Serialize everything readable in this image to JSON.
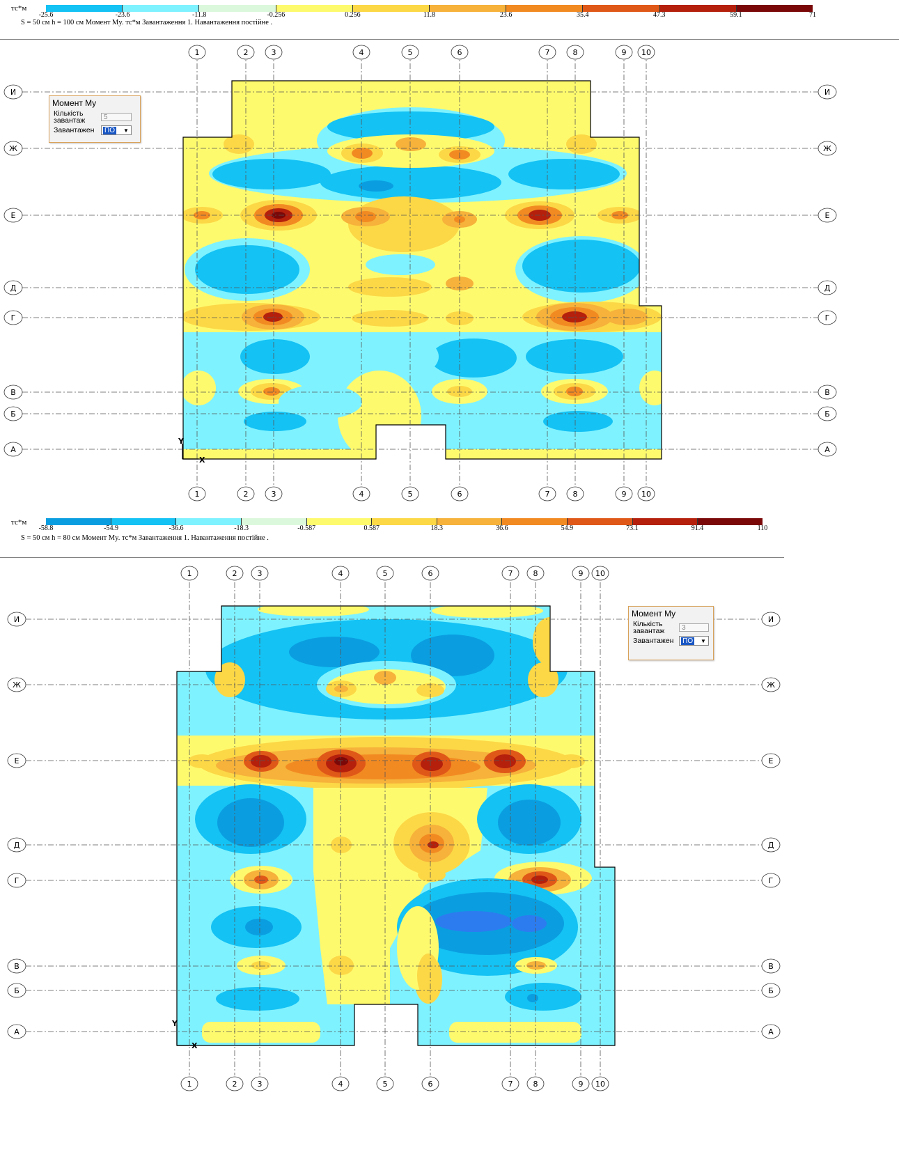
{
  "diagrams": [
    {
      "unit": "тс*м",
      "ticks": [
        "-25.6",
        "-23.6",
        "-11.8",
        "-0.256",
        "0.256",
        "11.8",
        "23.6",
        "35.4",
        "47.3",
        "59.1",
        "71"
      ],
      "colors": [
        "#0a9ee0",
        "#14c2f4",
        "#7ff2ff",
        "#dcf8dc",
        "#fefa6e",
        "#fcd846",
        "#f6b23a",
        "#f28a22",
        "#e05818",
        "#b4200c",
        "#7a0808"
      ],
      "caption": "S =  50 см   h = 100 см   Момент My. тс*м   Завантаження 1.    Навантаження постійне .",
      "panel": {
        "title": "Момент My",
        "count_label": "Кількість завантаж",
        "count_value": "5",
        "case_label": "Завантажен",
        "case_value": "ПО"
      },
      "columns": [
        "1",
        "2",
        "3",
        "4",
        "5",
        "6",
        "7",
        "8",
        "9",
        "10"
      ],
      "rows": [
        "И",
        "Ж",
        "Е",
        "Д",
        "Г",
        "В",
        "Б",
        "А"
      ],
      "axis_y": "Y",
      "axis_x": "X"
    },
    {
      "unit": "тс*м",
      "ticks": [
        "-58.8",
        "-54.9",
        "-36.6",
        "-18.3",
        "-0.587",
        "0.587",
        "18.3",
        "36.6",
        "54.9",
        "73.1",
        "91.4",
        "110"
      ],
      "colors": [
        "#2c7cf0",
        "#0a9ee0",
        "#14c2f4",
        "#7ff2ff",
        "#dcf8dc",
        "#fefa6e",
        "#fcd846",
        "#f6b23a",
        "#f28a22",
        "#e05818",
        "#b4200c",
        "#7a0808"
      ],
      "caption": "S =  50 см   h =  80 см   Момент My. тс*м   Завантаження 1.    Навантаження постійне .",
      "panel": {
        "title": "Момент My",
        "count_label": "Кількість завантаж",
        "count_value": "3",
        "case_label": "Завантажен",
        "case_value": "ПО"
      },
      "columns": [
        "1",
        "2",
        "3",
        "4",
        "5",
        "6",
        "7",
        "8",
        "9",
        "10"
      ],
      "rows": [
        "И",
        "Ж",
        "Е",
        "Д",
        "Г",
        "В",
        "Б",
        "А"
      ],
      "axis_y": "Y",
      "axis_x": "X"
    }
  ]
}
